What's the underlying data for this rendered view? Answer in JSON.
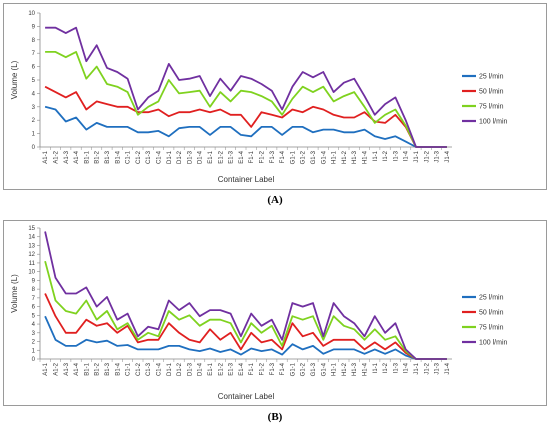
{
  "chart_data": [
    {
      "panel": "A",
      "type": "line",
      "xlabel": "Container Label",
      "ylabel": "Volume (L)",
      "ylim": [
        0,
        10
      ],
      "yticks": [
        0,
        1,
        2,
        3,
        4,
        5,
        6,
        7,
        8,
        9,
        10
      ],
      "grid": false,
      "legend_position": "right",
      "categories": [
        "A1-1",
        "A1-2",
        "A1-3",
        "A1-4",
        "B1-1",
        "B1-2",
        "B1-3",
        "B1-4",
        "C1-1",
        "C1-2",
        "C1-3",
        "C1-4",
        "D1-1",
        "D1-2",
        "D1-3",
        "D1-4",
        "E1-1",
        "E1-2",
        "E1-3",
        "E1-4",
        "F1-1",
        "F1-2",
        "F1-3",
        "F1-4",
        "G1-1",
        "G1-2",
        "G1-3",
        "G1-4",
        "H1-1",
        "H1-2",
        "H1-3",
        "H1-4",
        "I1-1",
        "I1-2",
        "I1-3",
        "I1-4",
        "J1-1",
        "J1-2",
        "J1-3",
        "J1-4"
      ],
      "series": [
        {
          "name": "25 l/min",
          "color": "#1f6fbf",
          "values": [
            3.0,
            2.8,
            1.9,
            2.2,
            1.3,
            1.8,
            1.5,
            1.5,
            1.5,
            1.1,
            1.1,
            1.2,
            0.8,
            1.4,
            1.5,
            1.5,
            0.9,
            1.5,
            1.5,
            0.9,
            0.8,
            1.5,
            1.5,
            0.9,
            1.5,
            1.5,
            1.1,
            1.3,
            1.3,
            1.1,
            1.1,
            1.3,
            0.8,
            0.6,
            0.8,
            0.4,
            0,
            0,
            0,
            0
          ]
        },
        {
          "name": "50 l/min",
          "color": "#e02020",
          "values": [
            4.5,
            4.1,
            3.7,
            4.1,
            2.8,
            3.4,
            3.2,
            3.0,
            3.0,
            2.6,
            2.6,
            2.8,
            2.3,
            2.6,
            2.6,
            2.8,
            2.6,
            2.8,
            2.4,
            2.4,
            1.5,
            2.6,
            2.4,
            2.2,
            2.8,
            2.6,
            3.0,
            2.8,
            2.4,
            2.2,
            2.2,
            2.6,
            1.9,
            1.8,
            2.4,
            1.5,
            0,
            0,
            0,
            0
          ]
        },
        {
          "name": "75 l/min",
          "color": "#7fd21f",
          "values": [
            7.1,
            7.1,
            6.7,
            7.1,
            5.1,
            6.0,
            4.7,
            4.5,
            4.1,
            2.4,
            3.0,
            3.4,
            5.0,
            4.0,
            4.1,
            4.2,
            3.0,
            4.1,
            3.4,
            4.2,
            4.1,
            3.8,
            3.4,
            2.4,
            3.6,
            4.5,
            4.1,
            4.5,
            3.4,
            3.8,
            4.1,
            3.0,
            1.8,
            2.4,
            2.8,
            1.6,
            0,
            0,
            0,
            0
          ]
        },
        {
          "name": "100 l/min",
          "color": "#7030a0",
          "values": [
            8.9,
            8.9,
            8.5,
            8.9,
            6.4,
            7.6,
            5.9,
            5.6,
            5.1,
            2.8,
            3.7,
            4.2,
            6.2,
            5.0,
            5.1,
            5.3,
            3.8,
            5.1,
            4.2,
            5.3,
            5.1,
            4.7,
            4.2,
            2.8,
            4.5,
            5.6,
            5.2,
            5.6,
            4.1,
            4.8,
            5.1,
            3.8,
            2.4,
            3.2,
            3.7,
            2.0,
            0,
            0,
            0,
            0
          ]
        }
      ]
    },
    {
      "panel": "B",
      "type": "line",
      "xlabel": "Container Label",
      "ylabel": "Volume (L)",
      "ylim": [
        0,
        15
      ],
      "yticks": [
        0,
        1,
        2,
        3,
        4,
        5,
        6,
        7,
        8,
        9,
        10,
        11,
        12,
        13,
        14,
        15
      ],
      "grid": false,
      "legend_position": "right",
      "categories": [
        "A1-1",
        "A1-2",
        "A1-3",
        "A1-4",
        "B1-1",
        "B1-2",
        "B1-3",
        "B1-4",
        "C1-1",
        "C1-2",
        "C1-3",
        "C1-4",
        "D1-1",
        "D1-2",
        "D1-3",
        "D1-4",
        "E1-1",
        "E1-2",
        "E1-3",
        "E1-4",
        "F1-1",
        "F1-2",
        "F1-3",
        "F1-4",
        "G1-1",
        "G1-2",
        "G1-3",
        "G1-4",
        "H1-1",
        "H1-2",
        "H1-3",
        "H1-4",
        "I1-1",
        "I1-2",
        "I1-3",
        "I1-4",
        "J1-1",
        "J1-2",
        "J1-3",
        "J1-4"
      ],
      "series": [
        {
          "name": "25 l/min",
          "color": "#1f6fbf",
          "values": [
            4.9,
            2.2,
            1.5,
            1.5,
            2.2,
            1.9,
            2.1,
            1.5,
            1.6,
            1.1,
            1.1,
            1.1,
            1.5,
            1.5,
            1.1,
            0.9,
            1.2,
            0.8,
            1.1,
            0.5,
            1.2,
            0.9,
            1.1,
            0.5,
            1.7,
            1.1,
            1.5,
            0.6,
            1.1,
            1.1,
            1.1,
            0.6,
            1.1,
            0.6,
            1.1,
            0.4,
            0,
            0,
            0,
            0
          ]
        },
        {
          "name": "50 l/min",
          "color": "#e02020",
          "values": [
            7.5,
            4.9,
            3.0,
            3.0,
            4.5,
            3.8,
            4.1,
            3.0,
            3.8,
            1.9,
            2.2,
            2.2,
            4.1,
            3.0,
            2.2,
            1.9,
            3.4,
            2.2,
            3.0,
            1.1,
            3.0,
            1.9,
            2.2,
            1.1,
            4.1,
            2.6,
            3.0,
            1.5,
            2.2,
            2.2,
            2.2,
            1.1,
            1.9,
            1.1,
            1.9,
            0.7,
            0,
            0,
            0,
            0
          ]
        },
        {
          "name": "75 l/min",
          "color": "#7fd21f",
          "values": [
            11.2,
            6.7,
            5.5,
            5.2,
            6.7,
            4.5,
            5.5,
            3.4,
            4.1,
            2.2,
            3.0,
            2.6,
            5.5,
            4.5,
            5.0,
            3.8,
            4.5,
            4.5,
            4.1,
            1.9,
            4.1,
            3.0,
            3.8,
            1.5,
            4.9,
            4.5,
            4.9,
            2.2,
            4.9,
            3.8,
            3.4,
            2.2,
            3.4,
            2.2,
            2.6,
            0.9,
            0,
            0,
            0,
            0
          ]
        },
        {
          "name": "100 l/min",
          "color": "#7030a0",
          "values": [
            14.6,
            9.3,
            7.5,
            7.5,
            8.2,
            6.0,
            7.1,
            4.5,
            5.2,
            2.6,
            3.7,
            3.4,
            6.7,
            5.6,
            6.4,
            4.9,
            5.6,
            5.6,
            5.2,
            2.6,
            5.2,
            3.8,
            4.5,
            2.2,
            6.4,
            6.0,
            6.4,
            2.6,
            6.4,
            4.9,
            4.1,
            2.6,
            4.9,
            3.0,
            4.1,
            1.1,
            0,
            0,
            0,
            0
          ]
        }
      ]
    }
  ],
  "captions": {
    "a": "(A)",
    "b": "(B)"
  }
}
